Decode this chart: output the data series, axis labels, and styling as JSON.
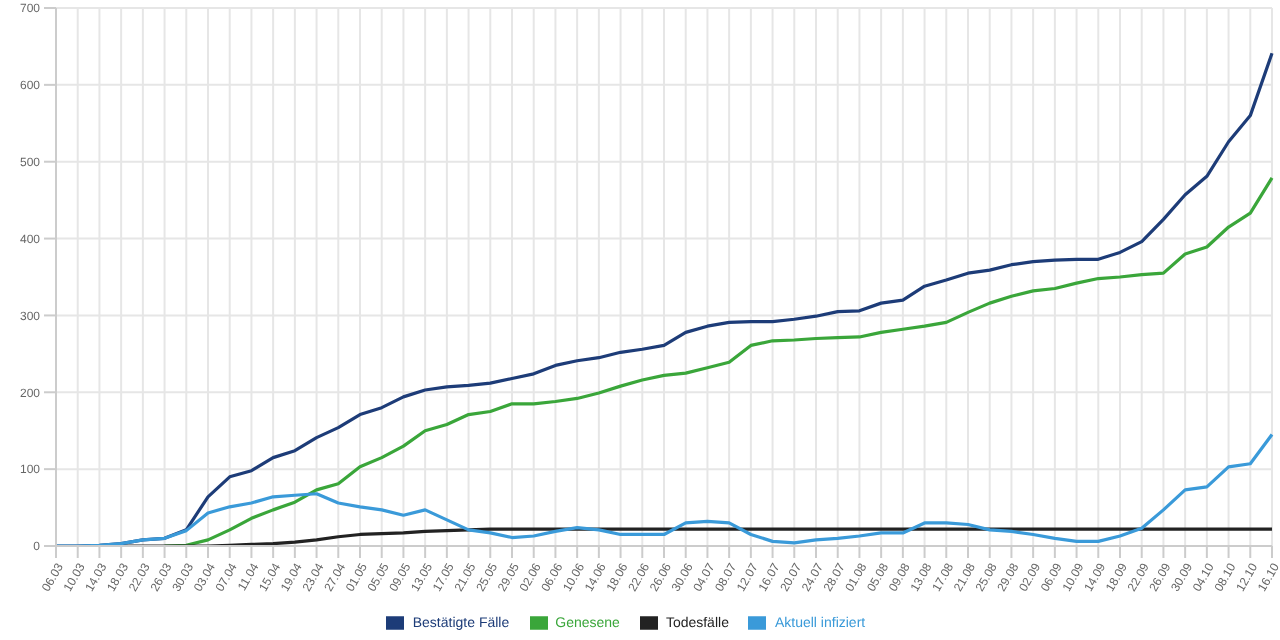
{
  "chart_data": {
    "type": "line",
    "categories": [
      "06.03",
      "10.03",
      "14.03",
      "18.03",
      "22.03",
      "26.03",
      "30.03",
      "03.04",
      "07.04",
      "11.04",
      "15.04",
      "19.04",
      "23.04",
      "27.04",
      "01.05",
      "05.05",
      "09.05",
      "13.05",
      "17.05",
      "21.05",
      "25.05",
      "29.05",
      "02.06",
      "06.06",
      "10.06",
      "14.06",
      "18.06",
      "22.06",
      "26.06",
      "30.06",
      "04.07",
      "08.07",
      "12.07",
      "16.07",
      "20.07",
      "24.07",
      "28.07",
      "01.08",
      "05.08",
      "09.08",
      "13.08",
      "17.08",
      "21.08",
      "25.08",
      "29.08",
      "02.09",
      "06.09",
      "10.09",
      "14.09",
      "18.09",
      "22.09",
      "26.09",
      "30.09",
      "04.10",
      "08.10",
      "12.10",
      "16.10"
    ],
    "series": [
      {
        "name": "Bestätigte Fälle",
        "color": "#1d3c78",
        "values": [
          0,
          0,
          1,
          3,
          8,
          10,
          21,
          64,
          90,
          98,
          115,
          124,
          141,
          154,
          171,
          180,
          194,
          203,
          207,
          209,
          212,
          218,
          224,
          235,
          241,
          245,
          252,
          256,
          261,
          278,
          286,
          291,
          292,
          292,
          295,
          299,
          305,
          306,
          316,
          320,
          338,
          346,
          355,
          359,
          366,
          370,
          372,
          373,
          373,
          382,
          396,
          425,
          457,
          481,
          526,
          560,
          641
        ]
      },
      {
        "name": "Genesene",
        "color": "#3aa63a",
        "values": [
          null,
          null,
          null,
          null,
          null,
          0,
          1,
          8,
          21,
          36,
          47,
          57,
          73,
          81,
          103,
          115,
          130,
          150,
          158,
          171,
          175,
          185,
          185,
          188,
          192,
          199,
          208,
          216,
          222,
          225,
          232,
          239,
          261,
          267,
          268,
          270,
          271,
          272,
          278,
          282,
          286,
          291,
          304,
          316,
          325,
          332,
          335,
          342,
          348,
          350,
          353,
          355,
          380,
          389,
          415,
          433,
          479
        ]
      },
      {
        "name": "Todesfälle",
        "color": "#222222",
        "values": [
          null,
          null,
          0,
          0,
          0,
          0,
          0,
          0,
          1,
          2,
          3,
          5,
          8,
          12,
          15,
          16,
          17,
          19,
          20,
          21,
          22,
          22,
          22,
          22,
          22,
          22,
          22,
          22,
          22,
          22,
          22,
          22,
          22,
          22,
          22,
          22,
          22,
          22,
          22,
          22,
          22,
          22,
          22,
          22,
          22,
          22,
          22,
          22,
          22,
          22,
          22,
          22,
          22,
          22,
          22,
          22,
          22
        ]
      },
      {
        "name": "Aktuell infiziert",
        "color": "#3a9ad9",
        "values": [
          0,
          0,
          1,
          3,
          8,
          10,
          20,
          43,
          51,
          56,
          64,
          66,
          68,
          56,
          51,
          47,
          40,
          47,
          34,
          21,
          17,
          11,
          13,
          19,
          24,
          21,
          15,
          15,
          15,
          30,
          32,
          30,
          15,
          6,
          4,
          8,
          10,
          13,
          17,
          17,
          30,
          30,
          28,
          21,
          19,
          15,
          10,
          6,
          6,
          13,
          23,
          47,
          73,
          77,
          103,
          107,
          145
        ]
      }
    ],
    "ylim": [
      0,
      700
    ],
    "yticks": [
      0,
      100,
      200,
      300,
      400,
      500,
      600,
      700
    ],
    "grid": true,
    "legend": "bottom",
    "marker": "none",
    "line_style": "solid"
  }
}
